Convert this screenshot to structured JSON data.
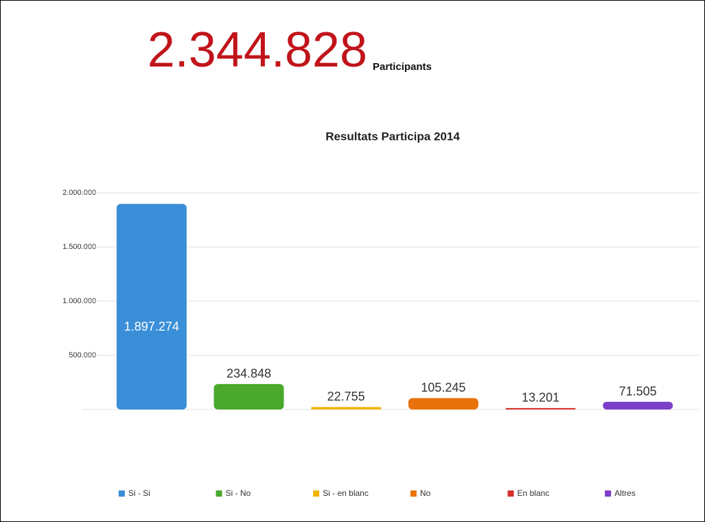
{
  "chart_data": {
    "type": "bar",
    "headline": "2.344.828",
    "headline_label": "Participants",
    "title": "Resultats Participa 2014",
    "categories": [
      "Si - Si",
      "Si - No",
      "Si - en blanc",
      "No",
      "En blanc",
      "Altres"
    ],
    "series": [
      {
        "name": "Resultats",
        "values": [
          1897274,
          234848,
          22755,
          105245,
          13201,
          71505
        ]
      }
    ],
    "value_labels": [
      "1.897.274",
      "234.848",
      "22.755",
      "105.245",
      "13.201",
      "71.505"
    ],
    "colors": [
      "#3a8fd8",
      "#4aa82c",
      "#f0b400",
      "#e8730c",
      "#d9302e",
      "#7b3fc8"
    ],
    "ylim": [
      0,
      2000000
    ],
    "yticks": [
      {
        "value": 500000,
        "label": "500.000"
      },
      {
        "value": 1000000,
        "label": "1.000.000"
      },
      {
        "value": 1500000,
        "label": "1.500.000"
      },
      {
        "value": 2000000,
        "label": "2.000.000"
      }
    ],
    "grid": true,
    "legend": "bottom"
  }
}
